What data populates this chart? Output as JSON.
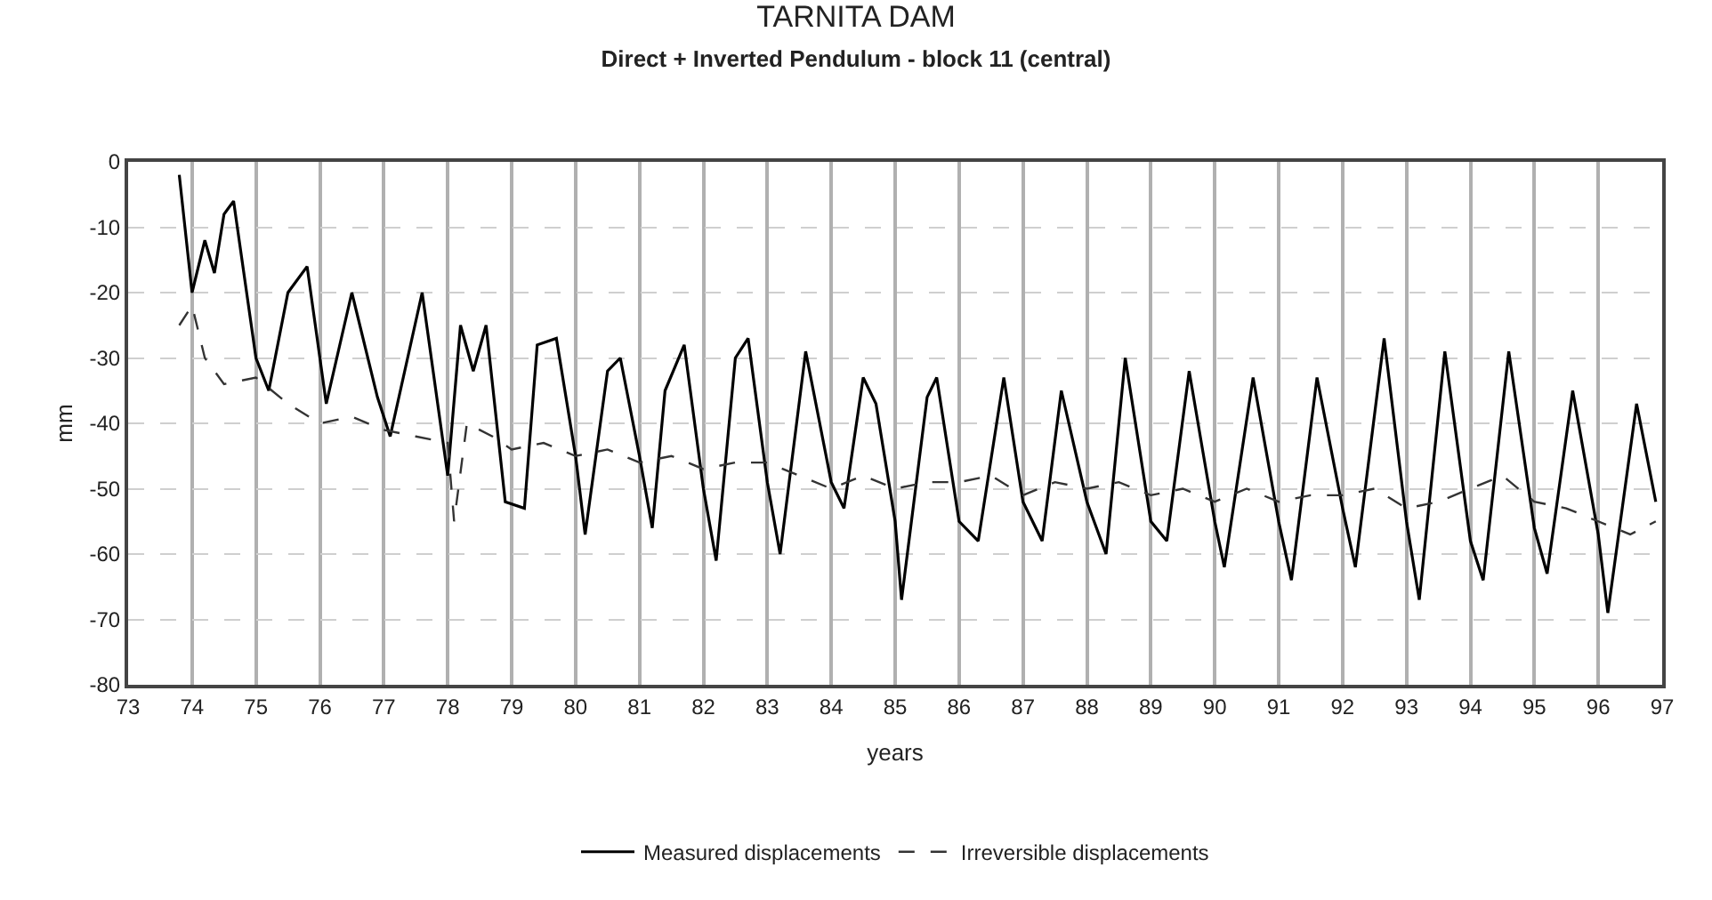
{
  "chart_data": {
    "type": "line",
    "title": "TARNITA DAM",
    "subtitle": "Direct + Inverted Pendulum - block 11 (central)",
    "xlabel": "years",
    "ylabel": "mm",
    "xlim": [
      73,
      97
    ],
    "xticks": [
      73,
      74,
      75,
      76,
      77,
      78,
      79,
      80,
      81,
      82,
      83,
      84,
      85,
      86,
      87,
      88,
      89,
      90,
      91,
      92,
      93,
      94,
      95,
      96,
      97
    ],
    "ylim": [
      -80,
      0
    ],
    "yticks": [
      -80,
      -70,
      -60,
      -50,
      -40,
      -30,
      -20,
      -10,
      0
    ],
    "grid": true,
    "legend": "bottom",
    "series": [
      {
        "name": "Measured displacements",
        "color": "#000000",
        "line_style": "solid",
        "x": [
          73.8,
          74.0,
          74.2,
          74.35,
          74.5,
          74.65,
          75.0,
          75.2,
          75.5,
          75.8,
          76.1,
          76.5,
          76.9,
          77.1,
          77.6,
          78.0,
          78.2,
          78.4,
          78.6,
          78.9,
          79.2,
          79.4,
          79.7,
          80.0,
          80.15,
          80.5,
          80.7,
          81.0,
          81.2,
          81.4,
          81.7,
          82.0,
          82.2,
          82.5,
          82.7,
          83.0,
          83.2,
          83.6,
          84.0,
          84.2,
          84.5,
          84.7,
          85.0,
          85.1,
          85.5,
          85.65,
          86.0,
          86.3,
          86.7,
          87.0,
          87.3,
          87.6,
          88.0,
          88.3,
          88.6,
          89.0,
          89.25,
          89.6,
          90.0,
          90.15,
          90.6,
          91.0,
          91.2,
          91.6,
          92.0,
          92.2,
          92.65,
          93.0,
          93.2,
          93.6,
          94.0,
          94.2,
          94.6,
          95.0,
          95.2,
          95.6,
          96.0,
          96.15,
          96.6,
          96.9
        ],
        "values": [
          -2,
          -20,
          -12,
          -17,
          -8,
          -6,
          -30,
          -35,
          -20,
          -16,
          -37,
          -20,
          -36,
          -42,
          -20,
          -48,
          -25,
          -32,
          -25,
          -52,
          -53,
          -28,
          -27,
          -45,
          -57,
          -32,
          -30,
          -45,
          -56,
          -35,
          -28,
          -50,
          -61,
          -30,
          -27,
          -49,
          -60,
          -29,
          -49,
          -53,
          -33,
          -37,
          -55,
          -67,
          -36,
          -33,
          -55,
          -58,
          -33,
          -52,
          -58,
          -35,
          -52,
          -60,
          -30,
          -55,
          -58,
          -32,
          -55,
          -62,
          -33,
          -55,
          -64,
          -33,
          -53,
          -62,
          -27,
          -55,
          -67,
          -29,
          -58,
          -64,
          -29,
          -56,
          -63,
          -35,
          -57,
          -69,
          -37,
          -52
        ]
      },
      {
        "name": "Irreversible displacements",
        "color": "#333333",
        "line_style": "dashed",
        "x": [
          73.8,
          74.0,
          74.2,
          74.5,
          75.0,
          75.5,
          76.0,
          76.5,
          77.0,
          77.5,
          78.0,
          78.1,
          78.3,
          78.7,
          79.0,
          79.5,
          80.0,
          80.5,
          81.0,
          81.5,
          82.0,
          82.5,
          83.0,
          83.5,
          84.0,
          84.5,
          85.0,
          85.5,
          86.0,
          86.5,
          87.0,
          87.5,
          88.0,
          88.5,
          89.0,
          89.5,
          90.0,
          90.5,
          91.0,
          91.5,
          92.0,
          92.5,
          93.0,
          93.5,
          94.0,
          94.5,
          95.0,
          95.5,
          96.0,
          96.5,
          96.9
        ],
        "values": [
          -25,
          -22,
          -30,
          -34,
          -33,
          -37,
          -40,
          -39,
          -41,
          -42,
          -43,
          -55,
          -40,
          -42,
          -44,
          -43,
          -45,
          -44,
          -46,
          -45,
          -47,
          -46,
          -46,
          -48,
          -50,
          -48,
          -50,
          -49,
          -49,
          -48,
          -51,
          -49,
          -50,
          -49,
          -51,
          -50,
          -52,
          -50,
          -52,
          -51,
          -51,
          -50,
          -53,
          -52,
          -50,
          -48,
          -52,
          -53,
          -55,
          -57,
          -55
        ]
      }
    ]
  }
}
